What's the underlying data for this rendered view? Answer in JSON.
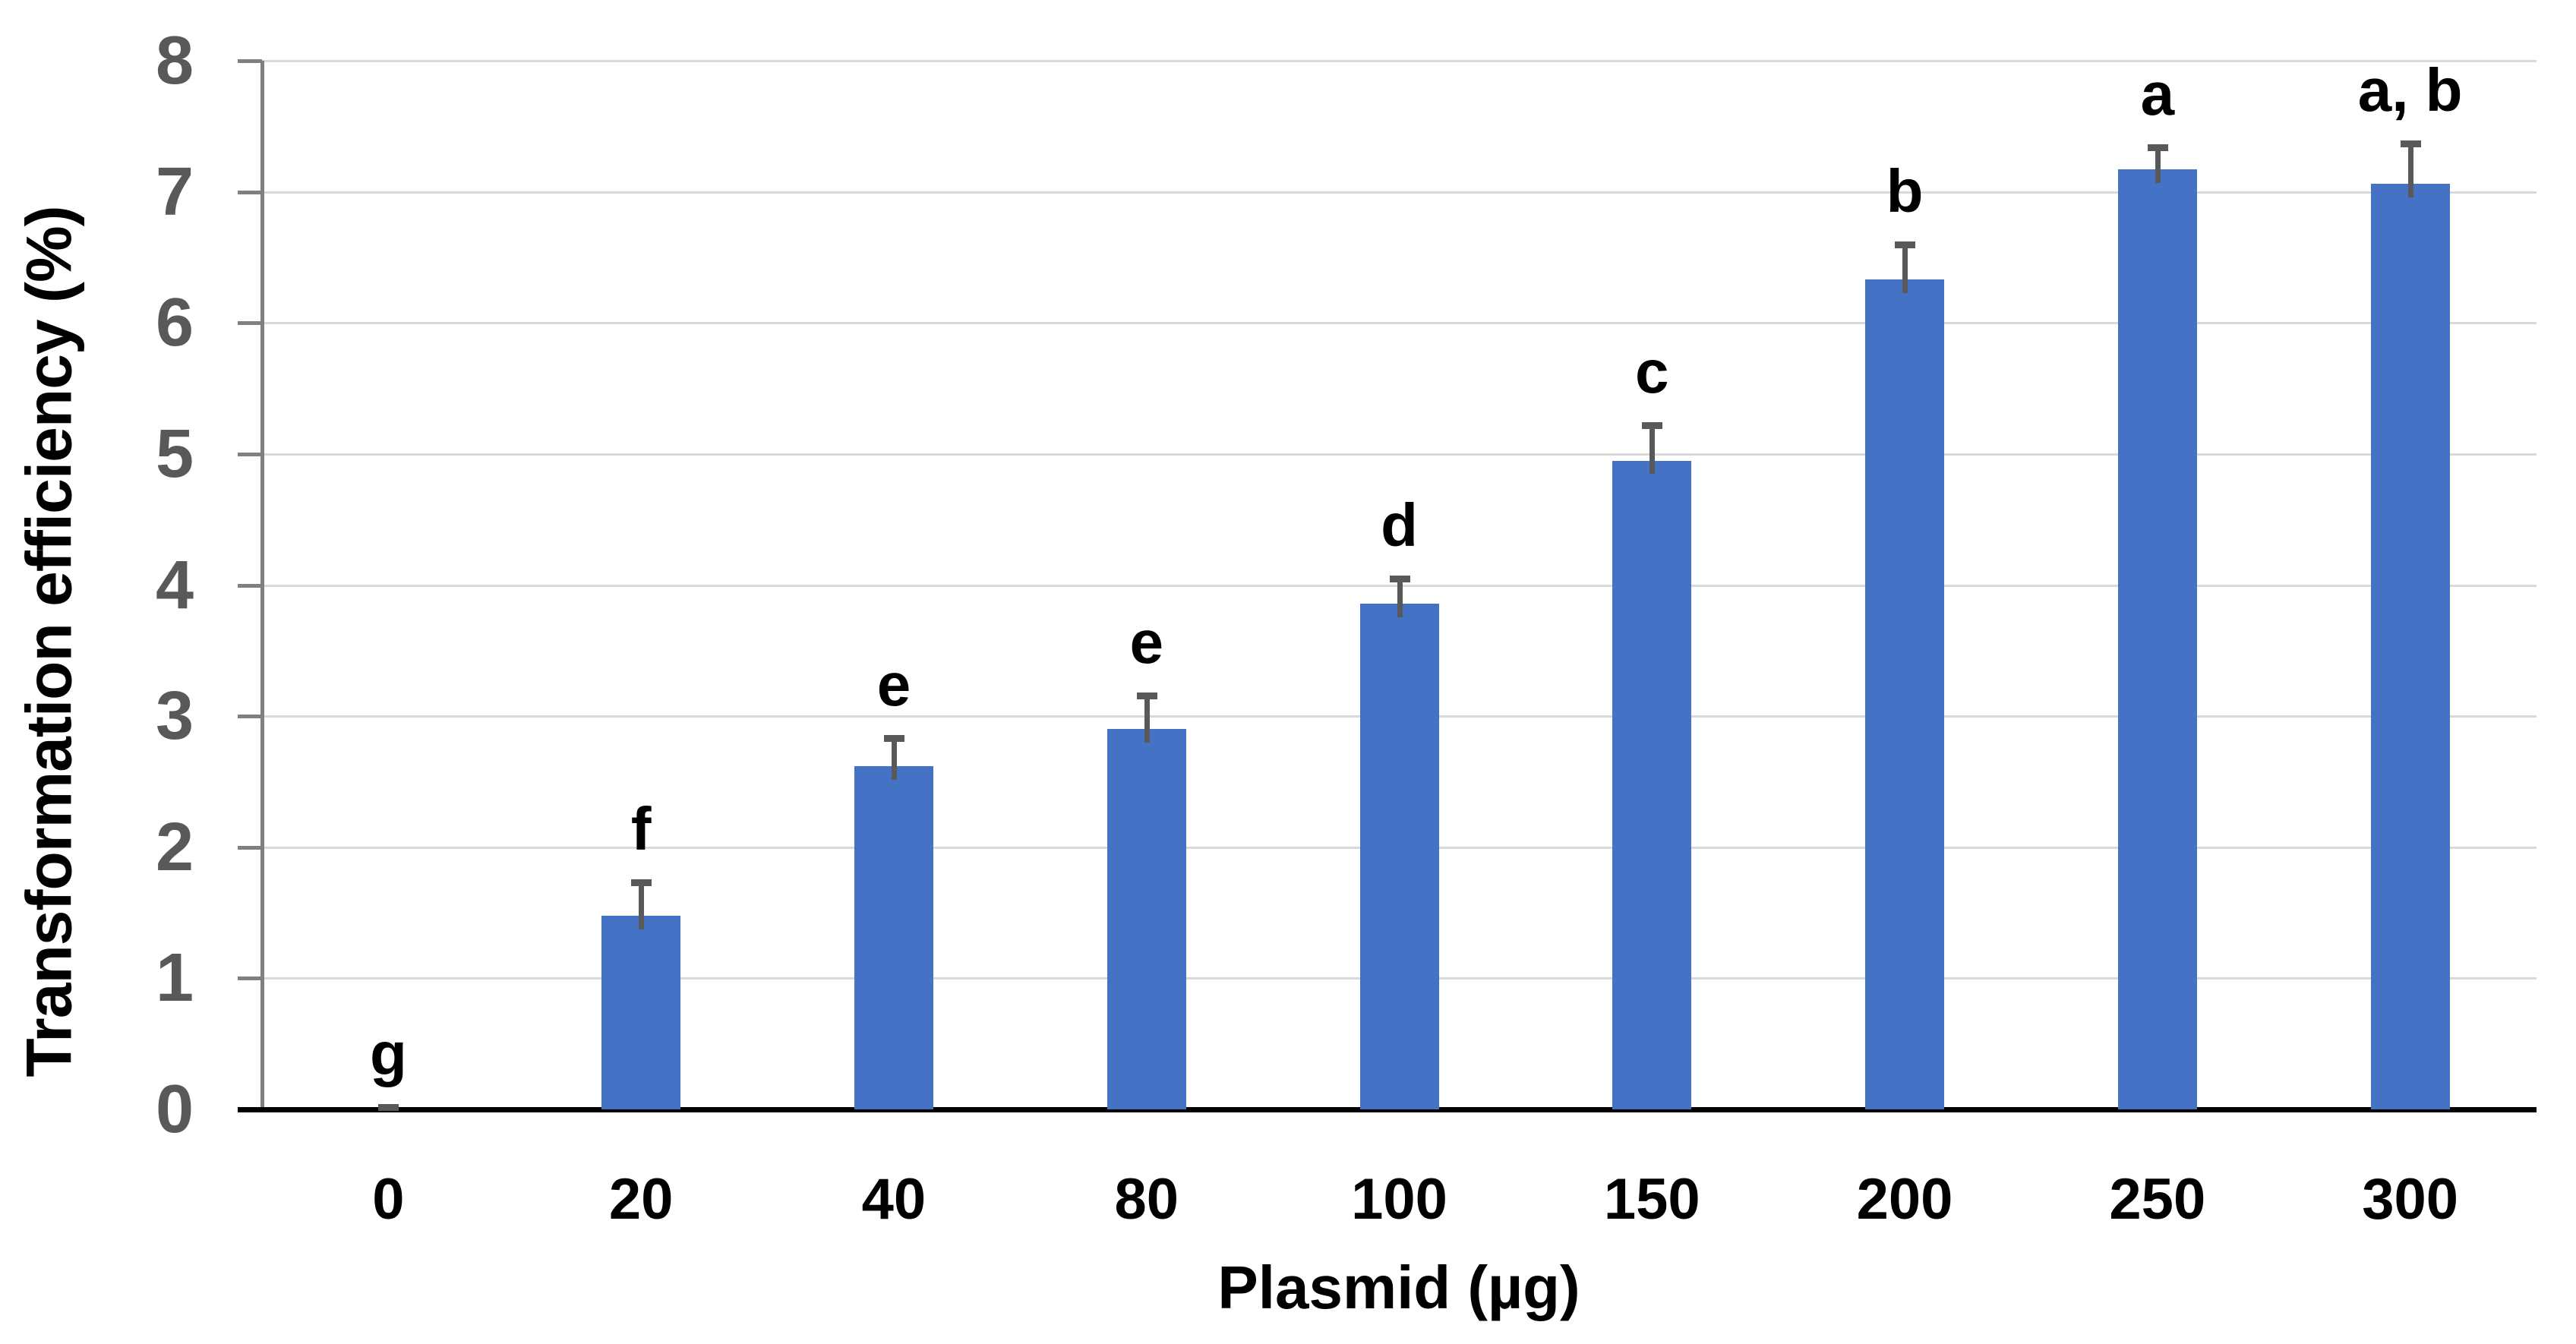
{
  "chart_data": {
    "type": "bar",
    "title": "",
    "xlabel": "Plasmid (µg)",
    "ylabel": "Transformation efficiency (%)",
    "categories": [
      "0",
      "20",
      "40",
      "80",
      "100",
      "150",
      "200",
      "250",
      "300"
    ],
    "values": [
      0,
      1.48,
      2.62,
      2.9,
      3.86,
      4.95,
      6.33,
      7.17,
      7.06
    ],
    "errors_plus": [
      0.02,
      0.25,
      0.21,
      0.26,
      0.19,
      0.27,
      0.27,
      0.17,
      0.31
    ],
    "sig_letters": [
      "g",
      "f",
      "e",
      "e",
      "d",
      "c",
      "b",
      "a",
      "a, b"
    ],
    "ylim": [
      0,
      8
    ],
    "yticks": [
      "0",
      "1",
      "2",
      "3",
      "4",
      "5",
      "6",
      "7",
      "8"
    ],
    "grid": true,
    "legend": "none",
    "colors": {
      "bar": "#4472C4",
      "error": "#595959",
      "gridline": "#D9D9D9",
      "axis": "#808080",
      "baseline": "#000000",
      "y_tick_label": "#595959",
      "x_tick_label": "#000000",
      "axis_title": "#000000",
      "background": "#FFFFFF"
    }
  }
}
